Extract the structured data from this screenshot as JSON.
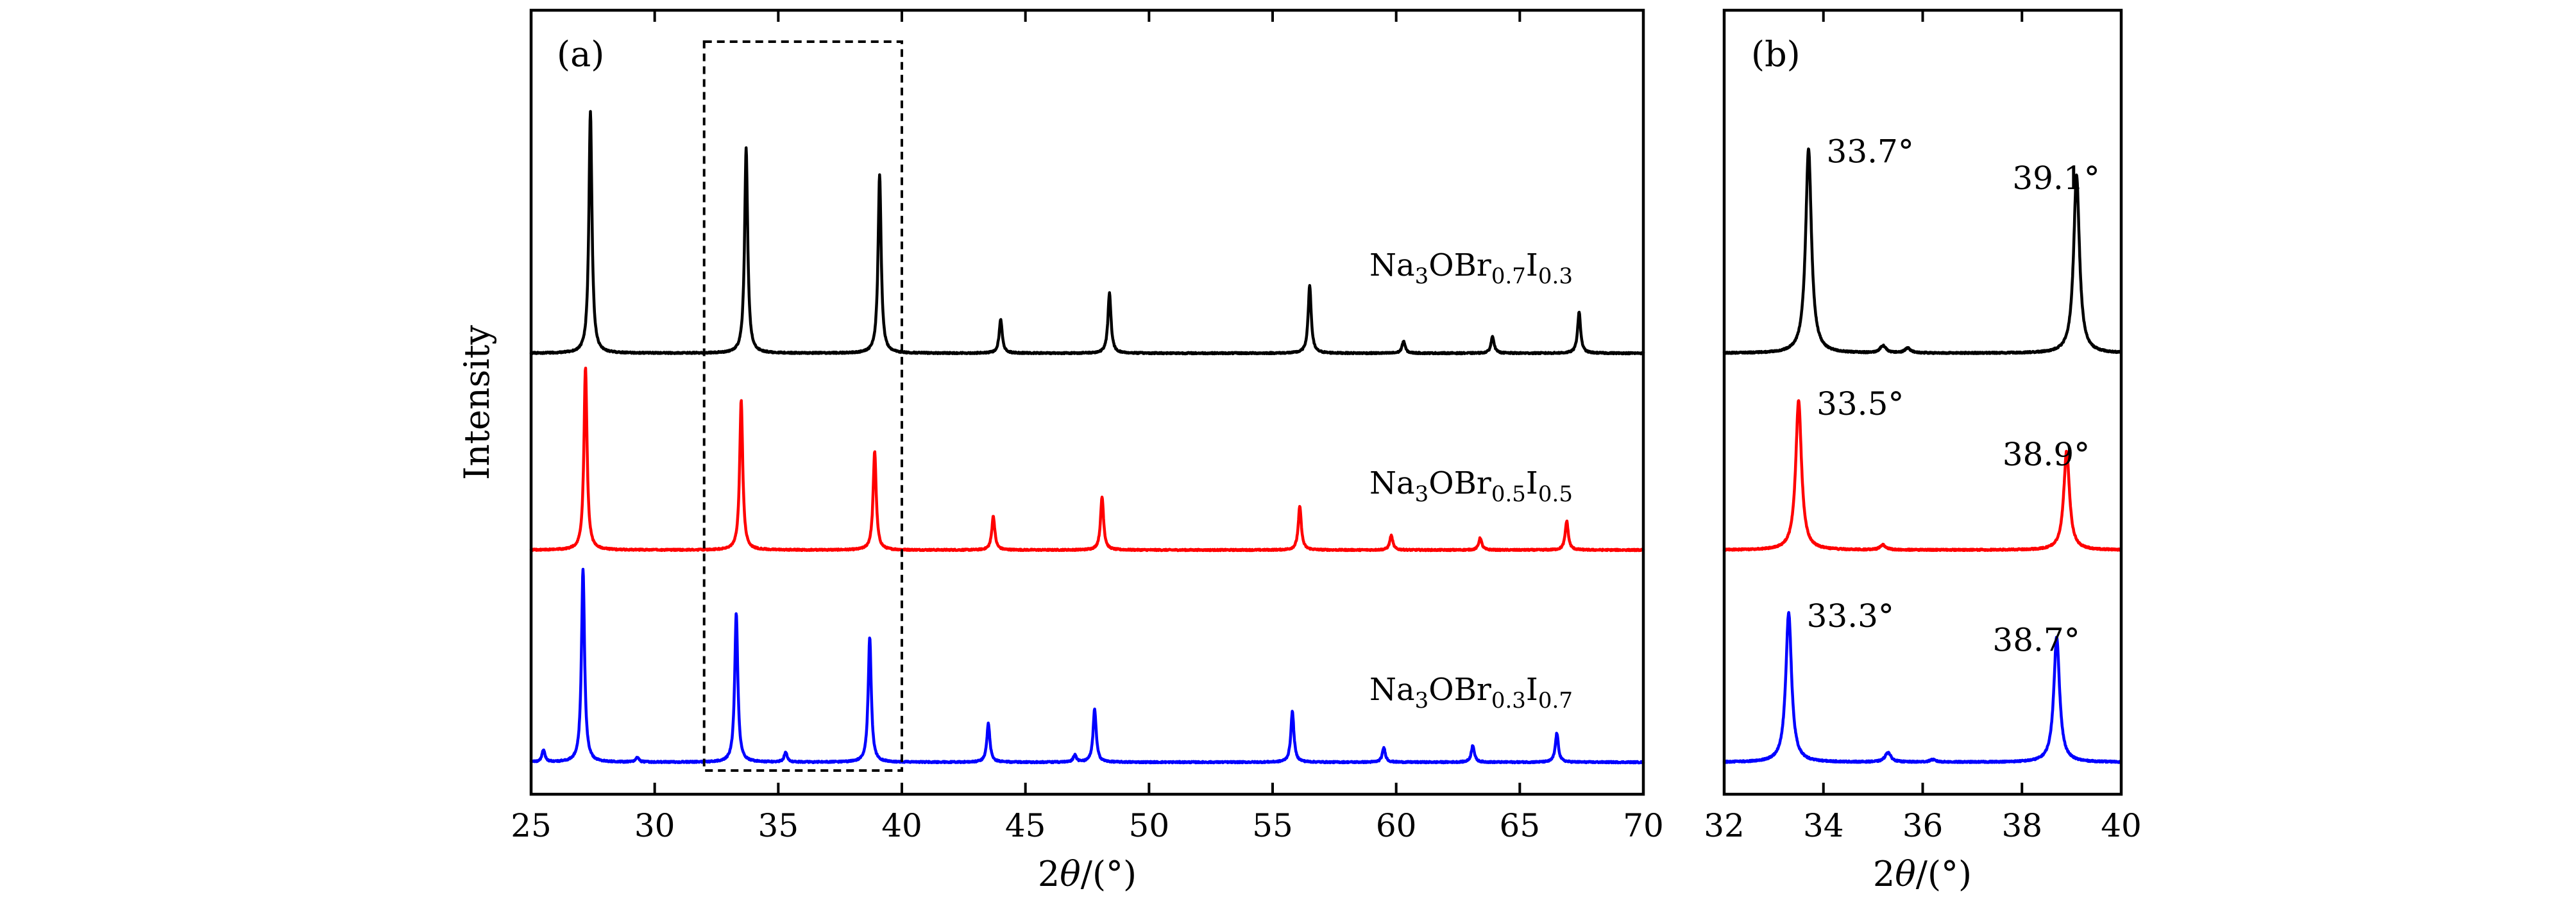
{
  "chart_data": [
    {
      "panel": "(a)",
      "type": "line",
      "xlabel_prefix": "2",
      "xlabel_symbol": "θ",
      "xlabel_suffix": "/(°)",
      "ylabel": "Intensity",
      "xlim": [
        25,
        70
      ],
      "xticks": [
        25,
        30,
        35,
        40,
        45,
        50,
        55,
        60,
        65,
        70
      ],
      "yticks_labels": false,
      "grid": false,
      "highlight_range": [
        32,
        40
      ],
      "series": [
        {
          "name_parts": {
            "base": "Na",
            "s1": "3",
            "mid": "OBr",
            "s2": "0.7",
            "el": "I",
            "s3": "0.3"
          },
          "color": "#000000",
          "peaks": [
            {
              "x": 27.4,
              "h": 1.0
            },
            {
              "x": 33.7,
              "h": 0.85
            },
            {
              "x": 39.1,
              "h": 0.74
            },
            {
              "x": 44.0,
              "h": 0.14
            },
            {
              "x": 48.4,
              "h": 0.25
            },
            {
              "x": 56.5,
              "h": 0.28
            },
            {
              "x": 60.3,
              "h": 0.05
            },
            {
              "x": 63.9,
              "h": 0.07
            },
            {
              "x": 67.4,
              "h": 0.17
            }
          ]
        },
        {
          "name_parts": {
            "base": "Na",
            "s1": "3",
            "mid": "OBr",
            "s2": "0.5",
            "el": "I",
            "s3": "0.5"
          },
          "color": "#ff0000",
          "peaks": [
            {
              "x": 27.2,
              "h": 0.76
            },
            {
              "x": 33.5,
              "h": 0.62
            },
            {
              "x": 38.9,
              "h": 0.41
            },
            {
              "x": 43.7,
              "h": 0.14
            },
            {
              "x": 48.1,
              "h": 0.22
            },
            {
              "x": 56.1,
              "h": 0.18
            },
            {
              "x": 59.8,
              "h": 0.06
            },
            {
              "x": 63.4,
              "h": 0.05
            },
            {
              "x": 66.9,
              "h": 0.12
            }
          ]
        },
        {
          "name_parts": {
            "base": "Na",
            "s1": "3",
            "mid": "OBr",
            "s2": "0.3",
            "el": "I",
            "s3": "0.7"
          },
          "color": "#0000ff",
          "peaks": [
            {
              "x": 25.5,
              "h": 0.05
            },
            {
              "x": 27.1,
              "h": 0.8
            },
            {
              "x": 29.3,
              "h": 0.02
            },
            {
              "x": 33.3,
              "h": 0.62
            },
            {
              "x": 35.3,
              "h": 0.04
            },
            {
              "x": 38.7,
              "h": 0.52
            },
            {
              "x": 43.5,
              "h": 0.16
            },
            {
              "x": 47.0,
              "h": 0.03
            },
            {
              "x": 47.8,
              "h": 0.22
            },
            {
              "x": 55.8,
              "h": 0.21
            },
            {
              "x": 59.5,
              "h": 0.06
            },
            {
              "x": 63.1,
              "h": 0.07
            },
            {
              "x": 66.5,
              "h": 0.12
            }
          ]
        }
      ]
    },
    {
      "panel": "(b)",
      "type": "line",
      "xlabel_prefix": "2",
      "xlabel_symbol": "θ",
      "xlabel_suffix": "/(°)",
      "xlim": [
        32,
        40
      ],
      "xticks": [
        32,
        34,
        36,
        38,
        40
      ],
      "yticks_labels": false,
      "grid": false,
      "series": [
        {
          "color": "#000000",
          "peaks": [
            {
              "x": 33.7,
              "h": 0.85,
              "label": "33.7°"
            },
            {
              "x": 35.2,
              "h": 0.03
            },
            {
              "x": 35.7,
              "h": 0.02
            },
            {
              "x": 39.1,
              "h": 0.74,
              "label": "39.1°"
            }
          ]
        },
        {
          "color": "#ff0000",
          "peaks": [
            {
              "x": 33.5,
              "h": 0.62,
              "label": "33.5°"
            },
            {
              "x": 35.2,
              "h": 0.02
            },
            {
              "x": 38.9,
              "h": 0.41,
              "label": "38.9°"
            }
          ]
        },
        {
          "color": "#0000ff",
          "peaks": [
            {
              "x": 33.3,
              "h": 0.62,
              "label": "33.3°"
            },
            {
              "x": 35.3,
              "h": 0.04
            },
            {
              "x": 36.2,
              "h": 0.01
            },
            {
              "x": 38.7,
              "h": 0.52,
              "label": "38.7°"
            }
          ]
        }
      ]
    }
  ]
}
